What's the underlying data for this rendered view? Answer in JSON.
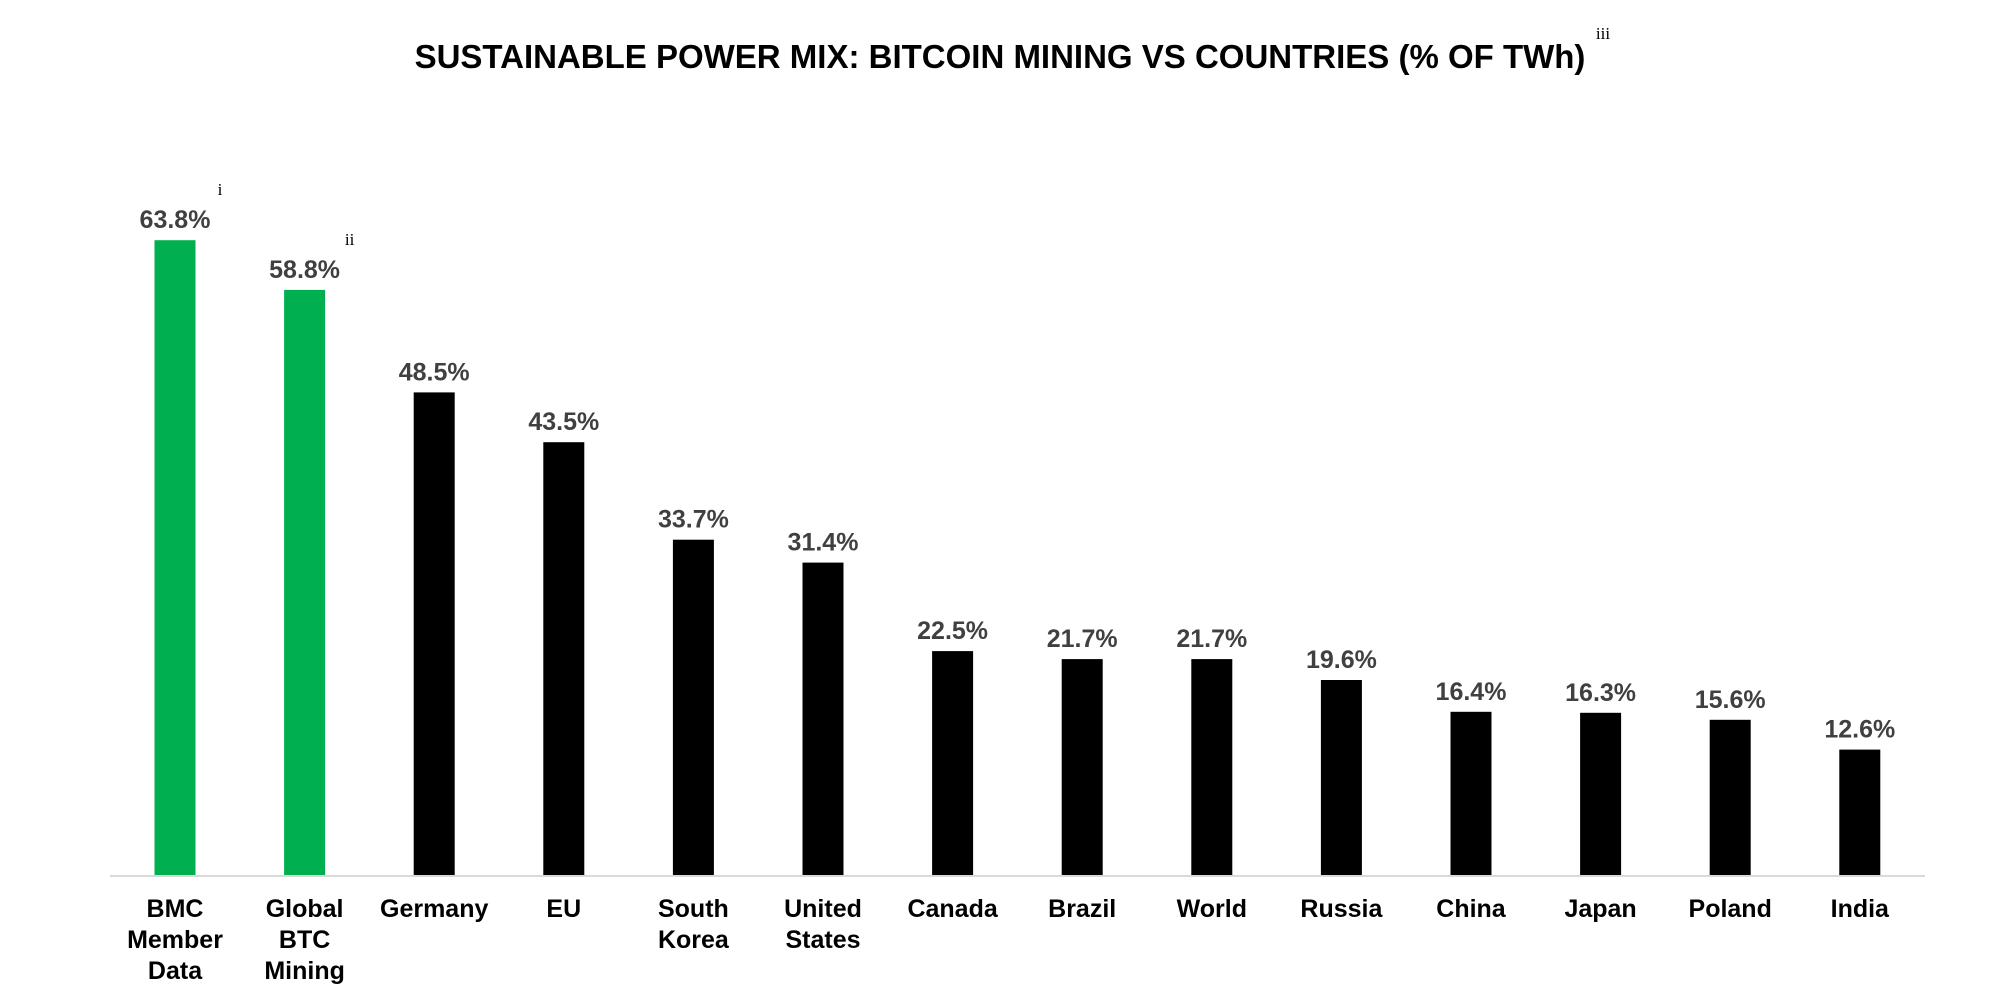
{
  "chart_data": {
    "type": "bar",
    "title": "SUSTAINABLE POWER MIX: BITCOIN MINING VS COUNTRIES (% OF TWh)",
    "title_footnote": "iii",
    "categories": [
      [
        "BMC",
        "Member",
        "Data"
      ],
      [
        "Global",
        "BTC",
        "Mining"
      ],
      [
        "Germany"
      ],
      [
        "EU"
      ],
      [
        "South",
        "Korea"
      ],
      [
        "United",
        "States"
      ],
      [
        "Canada"
      ],
      [
        "Brazil"
      ],
      [
        "World"
      ],
      [
        "Russia"
      ],
      [
        "China"
      ],
      [
        "Japan"
      ],
      [
        "Poland"
      ],
      [
        "India"
      ]
    ],
    "values": [
      63.8,
      58.8,
      48.5,
      43.5,
      33.7,
      31.4,
      22.5,
      21.7,
      21.7,
      19.6,
      16.4,
      16.3,
      15.6,
      12.6
    ],
    "value_labels": [
      "63.8%",
      "58.8%",
      "48.5%",
      "43.5%",
      "33.7%",
      "31.4%",
      "22.5%",
      "21.7%",
      "21.7%",
      "19.6%",
      "16.4%",
      "16.3%",
      "15.6%",
      "12.6%"
    ],
    "label_footnotes": [
      "i",
      "ii",
      "",
      "",
      "",
      "",
      "",
      "",
      "",
      "",
      "",
      "",
      "",
      ""
    ],
    "bar_colors": [
      "#00b050",
      "#00b050",
      "#000000",
      "#000000",
      "#000000",
      "#000000",
      "#000000",
      "#000000",
      "#000000",
      "#000000",
      "#000000",
      "#000000",
      "#000000",
      "#000000"
    ],
    "ylim": [
      0,
      70
    ],
    "xlabel": "",
    "ylabel": "",
    "grid": false,
    "legend": "none",
    "colors": {
      "highlight": "#00b050",
      "default": "#000000",
      "value_label": "#404040",
      "axis": "#d9d9d9"
    }
  }
}
